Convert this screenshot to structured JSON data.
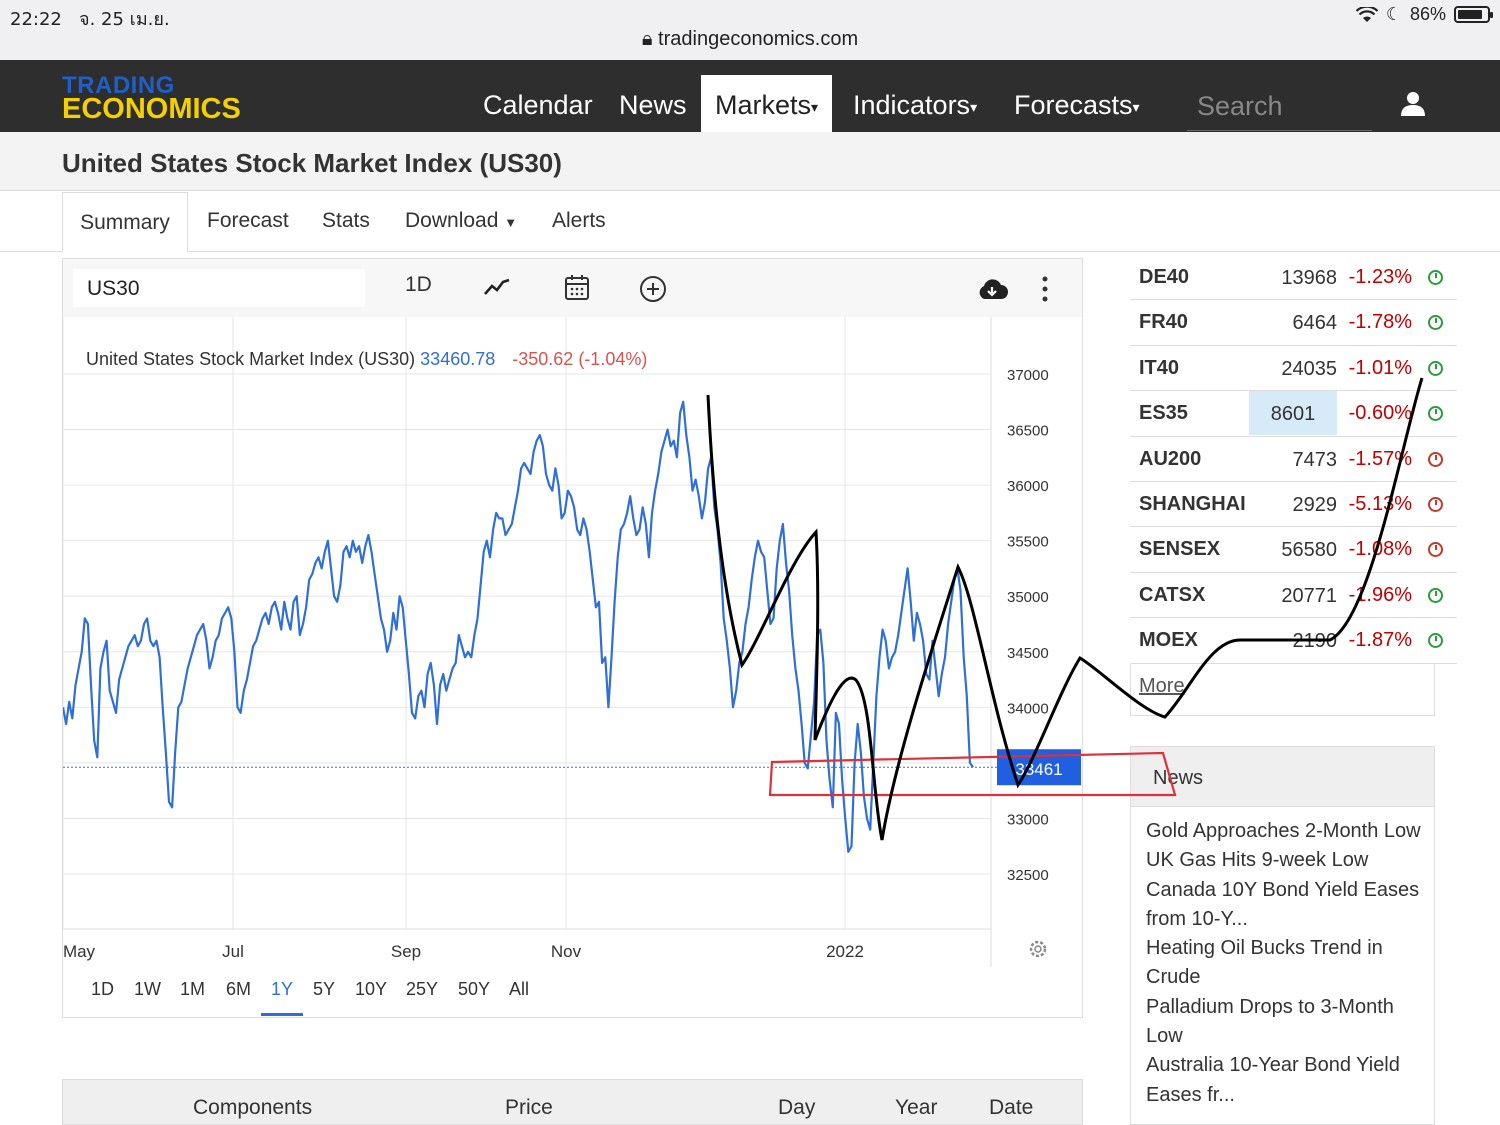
{
  "status_bar": {
    "time": "22:22",
    "date": "จ. 25 เม.ย.",
    "url": "tradingeconomics.com",
    "battery": "86%"
  },
  "navbar": {
    "logo_top": "TRADING",
    "logo_bottom": "ECONOMICS",
    "items": [
      {
        "label": "Calendar",
        "dropdown": false
      },
      {
        "label": "News",
        "dropdown": false
      },
      {
        "label": "Markets",
        "dropdown": true,
        "active": true
      },
      {
        "label": "Indicators",
        "dropdown": true
      },
      {
        "label": "Forecasts",
        "dropdown": true
      }
    ],
    "search_placeholder": "Search"
  },
  "page_title": "United States Stock Market Index (US30)",
  "tabs": [
    "Summary",
    "Forecast",
    "Stats",
    "Download",
    "Alerts"
  ],
  "chart_toolbar": {
    "symbol": "US30",
    "interval": "1D"
  },
  "chart_legend": {
    "name": "United States Stock Market Index (US30)",
    "price": "33460.78",
    "change": "-350.62 (-1.04%)"
  },
  "chart_data": {
    "type": "line",
    "ylim": [
      32000,
      37500
    ],
    "y_ticks": [
      37000,
      36500,
      36000,
      35500,
      35000,
      34500,
      34000,
      33500,
      33000,
      32500
    ],
    "x_labels": [
      "May",
      "Jul",
      "Sep",
      "Nov",
      "2022"
    ],
    "last_value": 33461,
    "series": [
      {
        "color": "#2f6fd6",
        "values": [
          34000,
          33850,
          34050,
          33900,
          34200,
          34350,
          34500,
          34800,
          34750,
          34200,
          33700,
          33550,
          34350,
          34500,
          34600,
          34150,
          34050,
          33950,
          34250,
          34350,
          34450,
          34550,
          34600,
          34650,
          34550,
          34600,
          34750,
          34800,
          34600,
          34550,
          34600,
          34450,
          34000,
          33600,
          33150,
          33100,
          33600,
          34000,
          34050,
          34200,
          34350,
          34450,
          34550,
          34650,
          34700,
          34750,
          34600,
          34350,
          34450,
          34600,
          34650,
          34800,
          34850,
          34900,
          34800,
          34500,
          34000,
          33950,
          34150,
          34250,
          34400,
          34550,
          34600,
          34700,
          34800,
          34850,
          34750,
          34900,
          34950,
          34850,
          34700,
          34950,
          34800,
          34700,
          34950,
          35000,
          34650,
          34750,
          34900,
          35150,
          35200,
          35300,
          35350,
          35250,
          35400,
          35500,
          35250,
          35000,
          34950,
          35100,
          35400,
          35450,
          35350,
          35500,
          35400,
          35450,
          35300,
          35450,
          35550,
          35400,
          35200,
          35000,
          34800,
          34700,
          34500,
          34600,
          34850,
          34700,
          35000,
          34900,
          34600,
          34300,
          33950,
          33900,
          34100,
          34150,
          34000,
          34300,
          34400,
          34200,
          33850,
          34200,
          34300,
          34150,
          34250,
          34350,
          34400,
          34650,
          34550,
          34450,
          34500,
          34450,
          34650,
          34800,
          35100,
          35400,
          35500,
          35350,
          35600,
          35750,
          35700,
          35700,
          35550,
          35600,
          35650,
          35800,
          35950,
          36150,
          36200,
          36150,
          36100,
          36300,
          36400,
          36450,
          36350,
          36100,
          36000,
          35950,
          36150,
          36000,
          35700,
          35750,
          35950,
          35900,
          35800,
          35600,
          35550,
          35700,
          35600,
          35400,
          35150,
          34900,
          34950,
          34400,
          34450,
          34000,
          34450,
          34950,
          35350,
          35600,
          35650,
          35750,
          35900,
          35700,
          35550,
          35600,
          35800,
          35650,
          35350,
          35750,
          35950,
          36100,
          36300,
          36400,
          36500,
          36350,
          36400,
          36250,
          36650,
          36750,
          36450,
          36250,
          35950,
          36050,
          35900,
          35700,
          35850,
          36150,
          36250,
          35800,
          35600,
          35300,
          34800,
          34600,
          34350,
          34000,
          34150,
          34400,
          34500,
          34750,
          34900,
          35150,
          35350,
          35500,
          35400,
          35350,
          35050,
          34750,
          34800,
          35250,
          35500,
          35650,
          35300,
          35050,
          34650,
          34350,
          34150,
          33850,
          33500,
          33450,
          33750,
          34050,
          34650,
          34700,
          34400,
          33700,
          33350,
          33100,
          33950,
          33850,
          33350,
          33000,
          32700,
          32750,
          33500,
          33850,
          33600,
          33200,
          33000,
          32900,
          33500,
          34100,
          34450,
          34700,
          34600,
          34350,
          34450,
          34500,
          34650,
          34850,
          35050,
          35250,
          34950,
          34600,
          34850,
          34750,
          34600,
          34300,
          34250,
          34600,
          34350,
          34100,
          34300,
          34450,
          34750,
          34950,
          35150,
          35250,
          35050,
          34450,
          34100,
          33500,
          33461
        ]
      }
    ]
  },
  "range_buttons": [
    "1D",
    "1W",
    "1M",
    "6M",
    "1Y",
    "5Y",
    "10Y",
    "25Y",
    "50Y",
    "All"
  ],
  "active_range": "1Y",
  "markets": [
    {
      "symbol": "DE40",
      "value": "13968",
      "change": "-1.23%",
      "status": "open"
    },
    {
      "symbol": "FR40",
      "value": "6464",
      "change": "-1.78%",
      "status": "open"
    },
    {
      "symbol": "IT40",
      "value": "24035",
      "change": "-1.01%",
      "status": "open"
    },
    {
      "symbol": "ES35",
      "value": "8601",
      "change": "-0.60%",
      "status": "open",
      "highlight": true
    },
    {
      "symbol": "AU200",
      "value": "7473",
      "change": "-1.57%",
      "status": "closed"
    },
    {
      "symbol": "SHANGHAI",
      "value": "2929",
      "change": "-5.13%",
      "status": "closed"
    },
    {
      "symbol": "SENSEX",
      "value": "56580",
      "change": "-1.08%",
      "status": "closed"
    },
    {
      "symbol": "CATSX",
      "value": "20771",
      "change": "-1.96%",
      "status": "open"
    },
    {
      "symbol": "MOEX",
      "value": "2190",
      "change": "-1.87%",
      "status": "open"
    }
  ],
  "markets_more": "More",
  "news": {
    "title": "News",
    "items": [
      "Gold Approaches 2-Month Low",
      "UK Gas Hits 9-week Low",
      "Canada 10Y Bond Yield Eases from 10-Y...",
      "Heating Oil Bucks Trend in Crude",
      "Palladium Drops to 3-Month Low",
      "Australia 10-Year Bond Yield Eases fr..."
    ]
  },
  "components_header": [
    "Components",
    "Price",
    "Day",
    "Year",
    "Date"
  ],
  "colors": {
    "accent": "#2f6fd6",
    "negative": "#c00000",
    "open": "#2a9d3a",
    "closed": "#c0392b",
    "navbar": "#2e2e2e",
    "logo_yellow": "#f5d000"
  }
}
